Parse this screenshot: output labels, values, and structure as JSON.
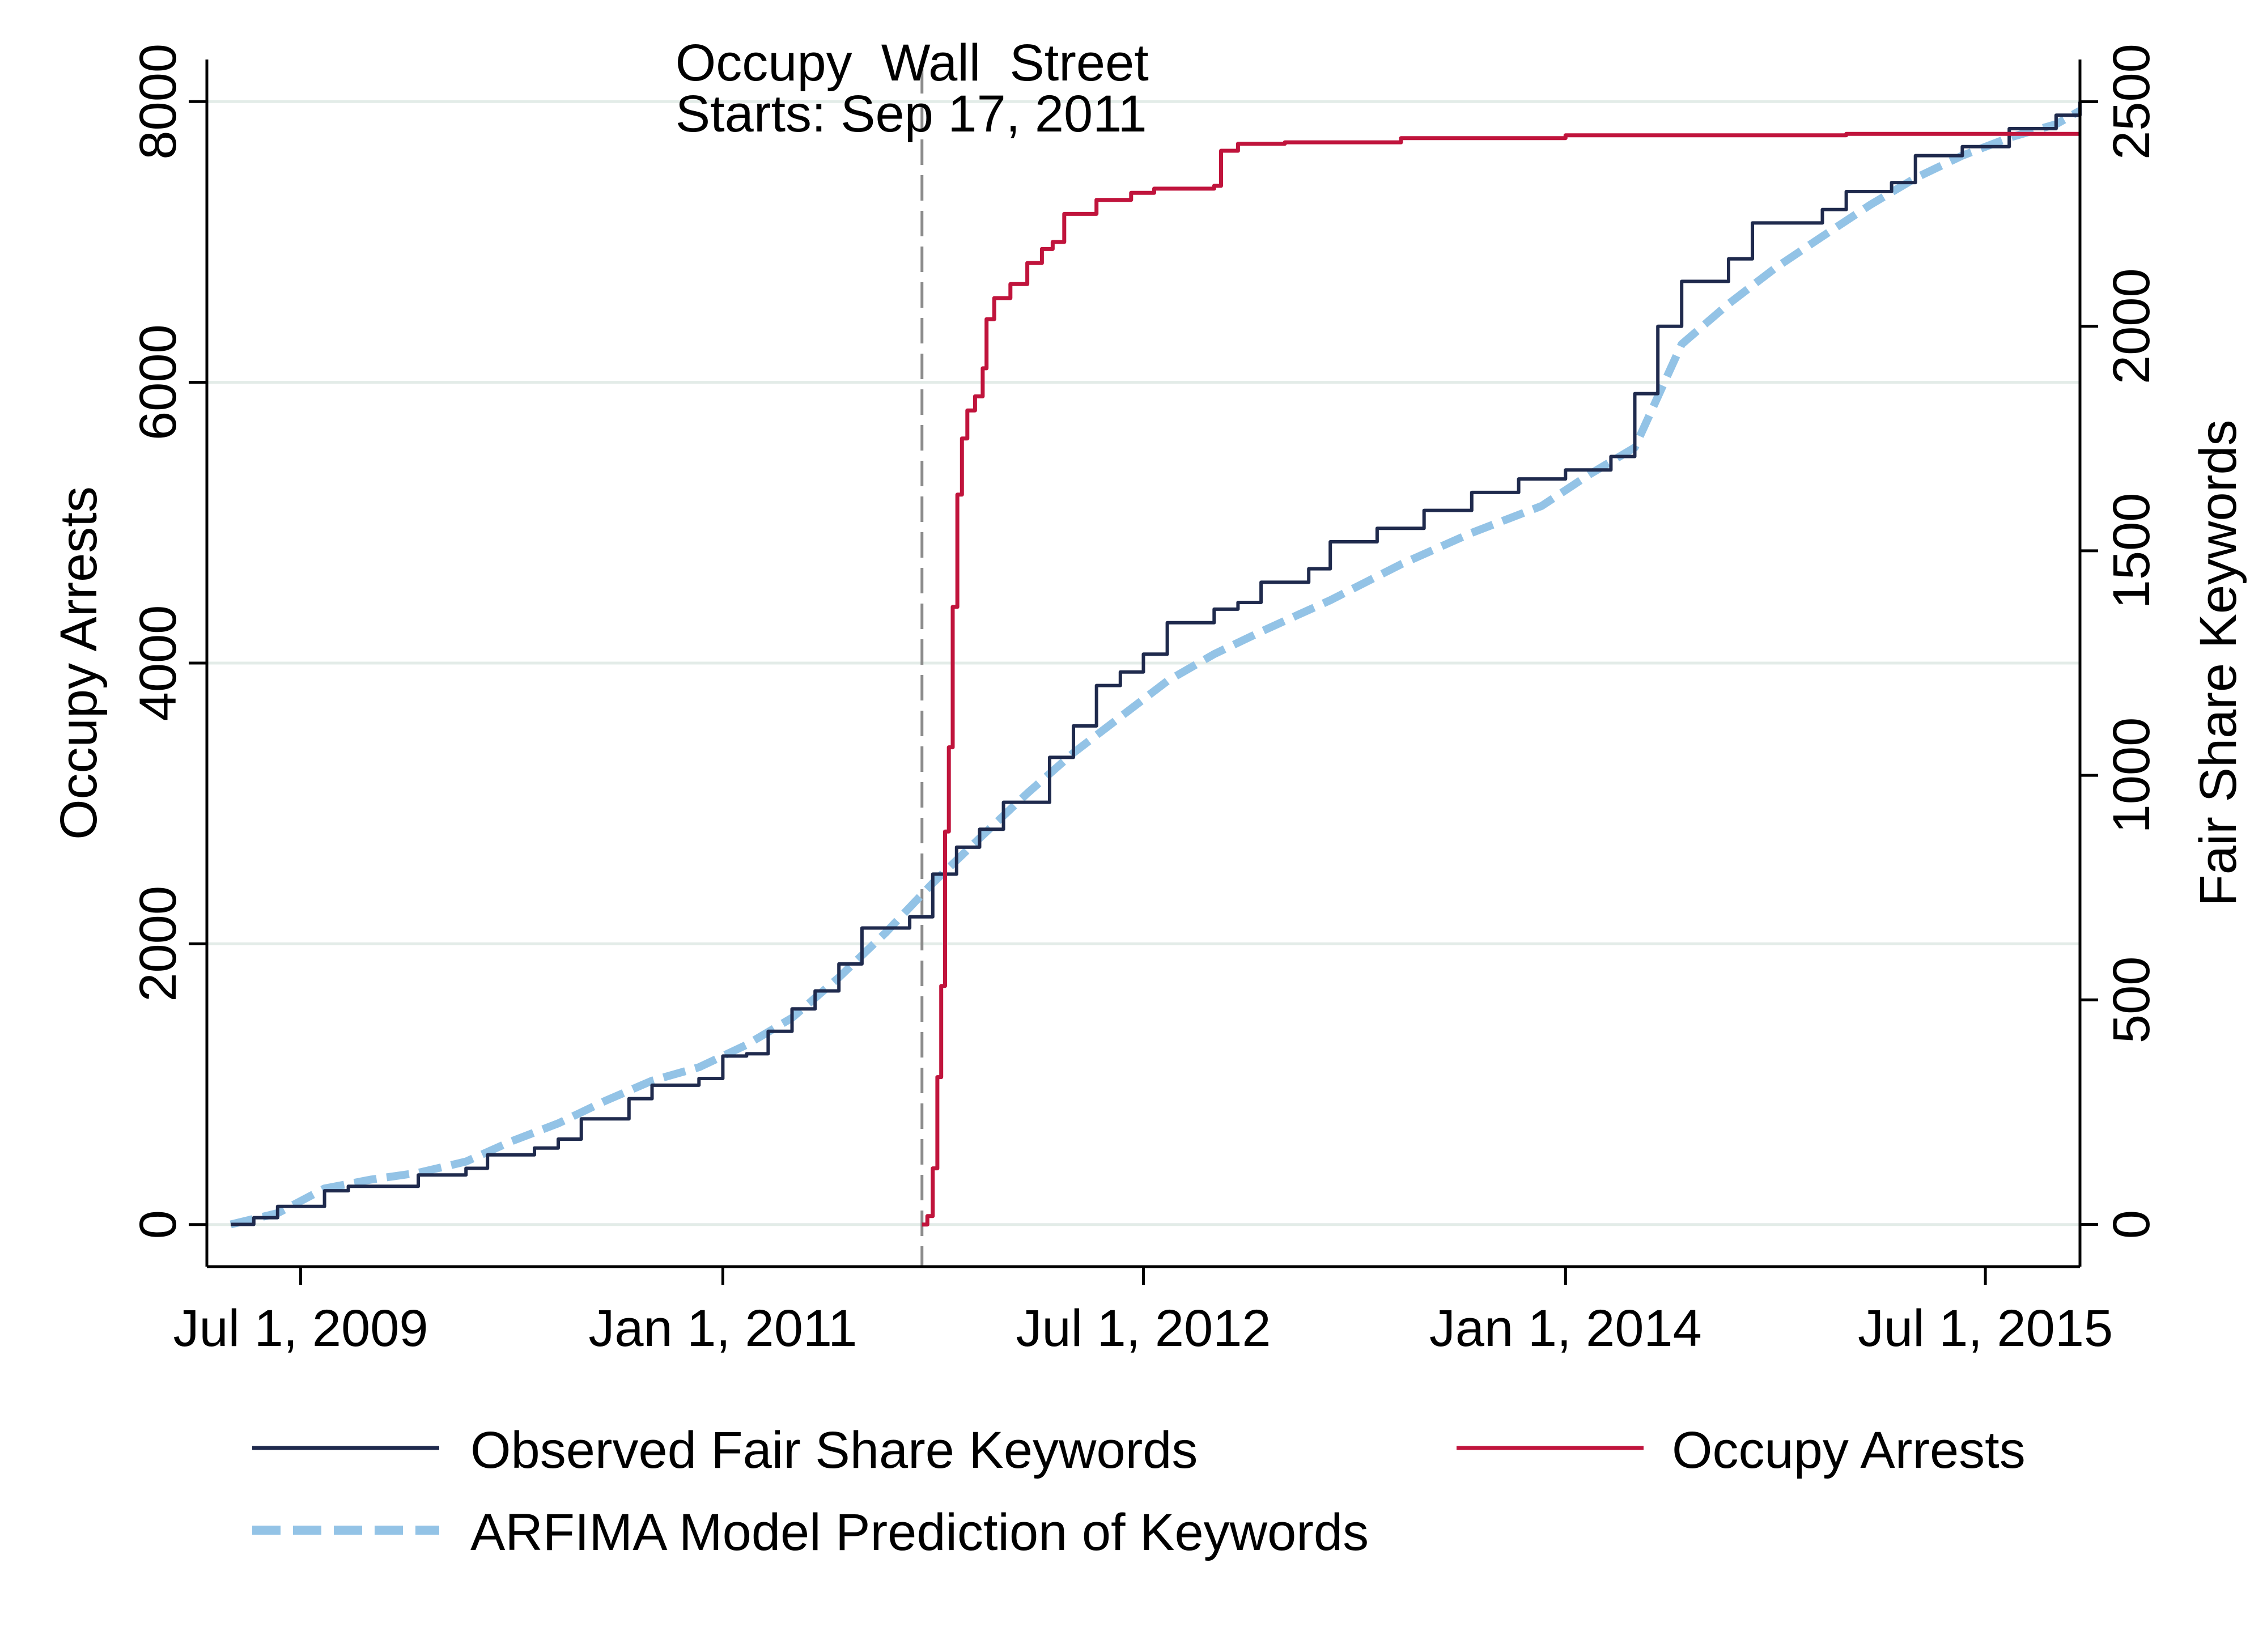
{
  "chart_data": {
    "type": "line",
    "title": "",
    "xlabel": "",
    "ylabel_left": "Occupy Arrests",
    "ylabel_right": "Fair Share Keywords",
    "x_domain": [
      "2009-03-01",
      "2015-11-01"
    ],
    "x_ticks": [
      {
        "date": "2009-07-01",
        "label": "Jul 1, 2009"
      },
      {
        "date": "2011-01-01",
        "label": "Jan 1, 2011"
      },
      {
        "date": "2012-07-01",
        "label": "Jul 1, 2012"
      },
      {
        "date": "2014-01-01",
        "label": "Jan 1, 2014"
      },
      {
        "date": "2015-07-01",
        "label": "Jul 1, 2015"
      }
    ],
    "y_left": {
      "range": [
        -300,
        8300
      ],
      "ticks": [
        0,
        2000,
        4000,
        6000,
        8000
      ]
    },
    "y_right": {
      "range": [
        -94,
        2594
      ],
      "ticks": [
        0,
        500,
        1000,
        1500,
        2000,
        2500
      ]
    },
    "grid": true,
    "annotation": {
      "date": "2011-09-17",
      "line1": "Occupy  Wall  Street",
      "line2": "Starts: Sep 17, 2011"
    },
    "legend_position": "bottom",
    "series": [
      {
        "name": "Observed Fair Share Keywords",
        "axis": "right",
        "color": "#1f2a4d",
        "style": "solid",
        "step": true,
        "points": [
          [
            "2009-04-01",
            0
          ],
          [
            "2009-05-01",
            15
          ],
          [
            "2009-06-01",
            40
          ],
          [
            "2009-08-01",
            75
          ],
          [
            "2009-09-01",
            85
          ],
          [
            "2009-12-01",
            110
          ],
          [
            "2010-02-01",
            125
          ],
          [
            "2010-03-01",
            155
          ],
          [
            "2010-05-01",
            170
          ],
          [
            "2010-06-01",
            190
          ],
          [
            "2010-07-01",
            235
          ],
          [
            "2010-09-01",
            280
          ],
          [
            "2010-10-01",
            310
          ],
          [
            "2010-12-01",
            325
          ],
          [
            "2011-01-01",
            375
          ],
          [
            "2011-02-01",
            380
          ],
          [
            "2011-03-01",
            430
          ],
          [
            "2011-04-01",
            480
          ],
          [
            "2011-05-01",
            520
          ],
          [
            "2011-06-01",
            580
          ],
          [
            "2011-07-01",
            660
          ],
          [
            "2011-09-01",
            685
          ],
          [
            "2011-10-01",
            780
          ],
          [
            "2011-11-01",
            840
          ],
          [
            "2011-12-01",
            880
          ],
          [
            "2012-01-01",
            940
          ],
          [
            "2012-03-01",
            1040
          ],
          [
            "2012-04-01",
            1110
          ],
          [
            "2012-05-01",
            1200
          ],
          [
            "2012-06-01",
            1230
          ],
          [
            "2012-07-01",
            1270
          ],
          [
            "2012-08-01",
            1340
          ],
          [
            "2012-10-01",
            1370
          ],
          [
            "2012-11-01",
            1385
          ],
          [
            "2012-12-01",
            1430
          ],
          [
            "2013-02-01",
            1460
          ],
          [
            "2013-03-01",
            1520
          ],
          [
            "2013-05-01",
            1550
          ],
          [
            "2013-07-01",
            1590
          ],
          [
            "2013-09-01",
            1630
          ],
          [
            "2013-11-01",
            1660
          ],
          [
            "2014-01-01",
            1680
          ],
          [
            "2014-03-01",
            1710
          ],
          [
            "2014-04-01",
            1850
          ],
          [
            "2014-05-01",
            2000
          ],
          [
            "2014-06-01",
            2100
          ],
          [
            "2014-08-01",
            2150
          ],
          [
            "2014-09-01",
            2230
          ],
          [
            "2014-12-01",
            2260
          ],
          [
            "2015-01-01",
            2300
          ],
          [
            "2015-03-01",
            2320
          ],
          [
            "2015-04-01",
            2380
          ],
          [
            "2015-06-01",
            2400
          ],
          [
            "2015-08-01",
            2440
          ],
          [
            "2015-10-01",
            2470
          ],
          [
            "2015-11-01",
            2500
          ]
        ]
      },
      {
        "name": "Occupy Arrests",
        "axis": "left",
        "color": "#c0143c",
        "style": "solid",
        "step": true,
        "points": [
          [
            "2011-09-17",
            0
          ],
          [
            "2011-09-24",
            60
          ],
          [
            "2011-10-01",
            400
          ],
          [
            "2011-10-07",
            1050
          ],
          [
            "2011-10-12",
            1700
          ],
          [
            "2011-10-17",
            2800
          ],
          [
            "2011-10-22",
            3400
          ],
          [
            "2011-10-27",
            4400
          ],
          [
            "2011-11-02",
            5200
          ],
          [
            "2011-11-08",
            5600
          ],
          [
            "2011-11-15",
            5800
          ],
          [
            "2011-11-25",
            5900
          ],
          [
            "2011-12-05",
            6100
          ],
          [
            "2011-12-10",
            6450
          ],
          [
            "2011-12-20",
            6600
          ],
          [
            "2012-01-10",
            6700
          ],
          [
            "2012-02-01",
            6850
          ],
          [
            "2012-02-20",
            6950
          ],
          [
            "2012-03-05",
            7000
          ],
          [
            "2012-03-20",
            7200
          ],
          [
            "2012-05-01",
            7300
          ],
          [
            "2012-06-15",
            7350
          ],
          [
            "2012-07-15",
            7380
          ],
          [
            "2012-10-01",
            7400
          ],
          [
            "2012-10-10",
            7650
          ],
          [
            "2012-11-01",
            7700
          ],
          [
            "2013-01-01",
            7710
          ],
          [
            "2013-06-01",
            7740
          ],
          [
            "2014-01-01",
            7760
          ],
          [
            "2015-01-01",
            7770
          ],
          [
            "2015-11-01",
            7770
          ]
        ]
      },
      {
        "name": "ARFIMA Model Prediction of Keywords",
        "axis": "right",
        "color": "#93c3e6",
        "style": "dashed",
        "step": false,
        "points": [
          [
            "2009-04-01",
            0
          ],
          [
            "2009-06-01",
            25
          ],
          [
            "2009-08-01",
            80
          ],
          [
            "2009-10-01",
            100
          ],
          [
            "2009-12-01",
            115
          ],
          [
            "2010-02-01",
            140
          ],
          [
            "2010-04-01",
            185
          ],
          [
            "2010-06-01",
            225
          ],
          [
            "2010-08-01",
            275
          ],
          [
            "2010-10-01",
            320
          ],
          [
            "2010-12-01",
            350
          ],
          [
            "2011-02-01",
            400
          ],
          [
            "2011-04-01",
            460
          ],
          [
            "2011-06-01",
            550
          ],
          [
            "2011-08-01",
            650
          ],
          [
            "2011-10-01",
            760
          ],
          [
            "2011-12-01",
            860
          ],
          [
            "2012-02-01",
            960
          ],
          [
            "2012-04-01",
            1050
          ],
          [
            "2012-06-01",
            1130
          ],
          [
            "2012-08-01",
            1210
          ],
          [
            "2012-10-01",
            1270
          ],
          [
            "2012-12-01",
            1320
          ],
          [
            "2013-03-01",
            1390
          ],
          [
            "2013-06-01",
            1470
          ],
          [
            "2013-09-01",
            1540
          ],
          [
            "2013-12-01",
            1600
          ],
          [
            "2014-02-01",
            1670
          ],
          [
            "2014-04-01",
            1730
          ],
          [
            "2014-06-01",
            1960
          ],
          [
            "2014-08-01",
            2050
          ],
          [
            "2014-10-01",
            2130
          ],
          [
            "2014-12-01",
            2200
          ],
          [
            "2015-02-01",
            2270
          ],
          [
            "2015-04-01",
            2330
          ],
          [
            "2015-06-01",
            2380
          ],
          [
            "2015-08-01",
            2420
          ],
          [
            "2015-10-01",
            2450
          ],
          [
            "2015-11-01",
            2480
          ]
        ]
      }
    ]
  }
}
